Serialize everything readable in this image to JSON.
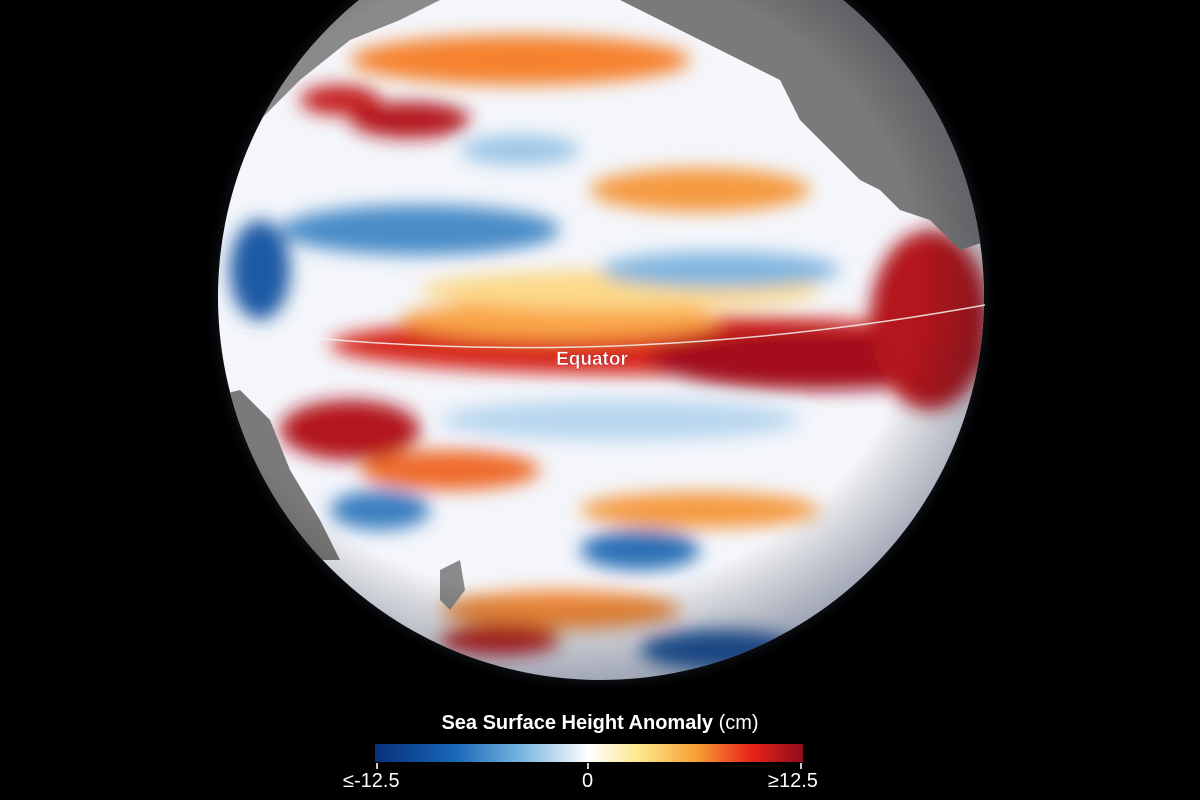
{
  "map": {
    "equator_label": "Equator",
    "colors": {
      "negative": "#0a2f7a",
      "neutral": "#ffffff",
      "positive": "#8e0d1a",
      "land": "#7a7a7a",
      "background": "#000000"
    }
  },
  "legend": {
    "title": "Sea Surface Height Anomaly",
    "unit": "(cm)",
    "min_label": "≤-12.5",
    "mid_label": "0",
    "max_label": "≥12.5"
  }
}
